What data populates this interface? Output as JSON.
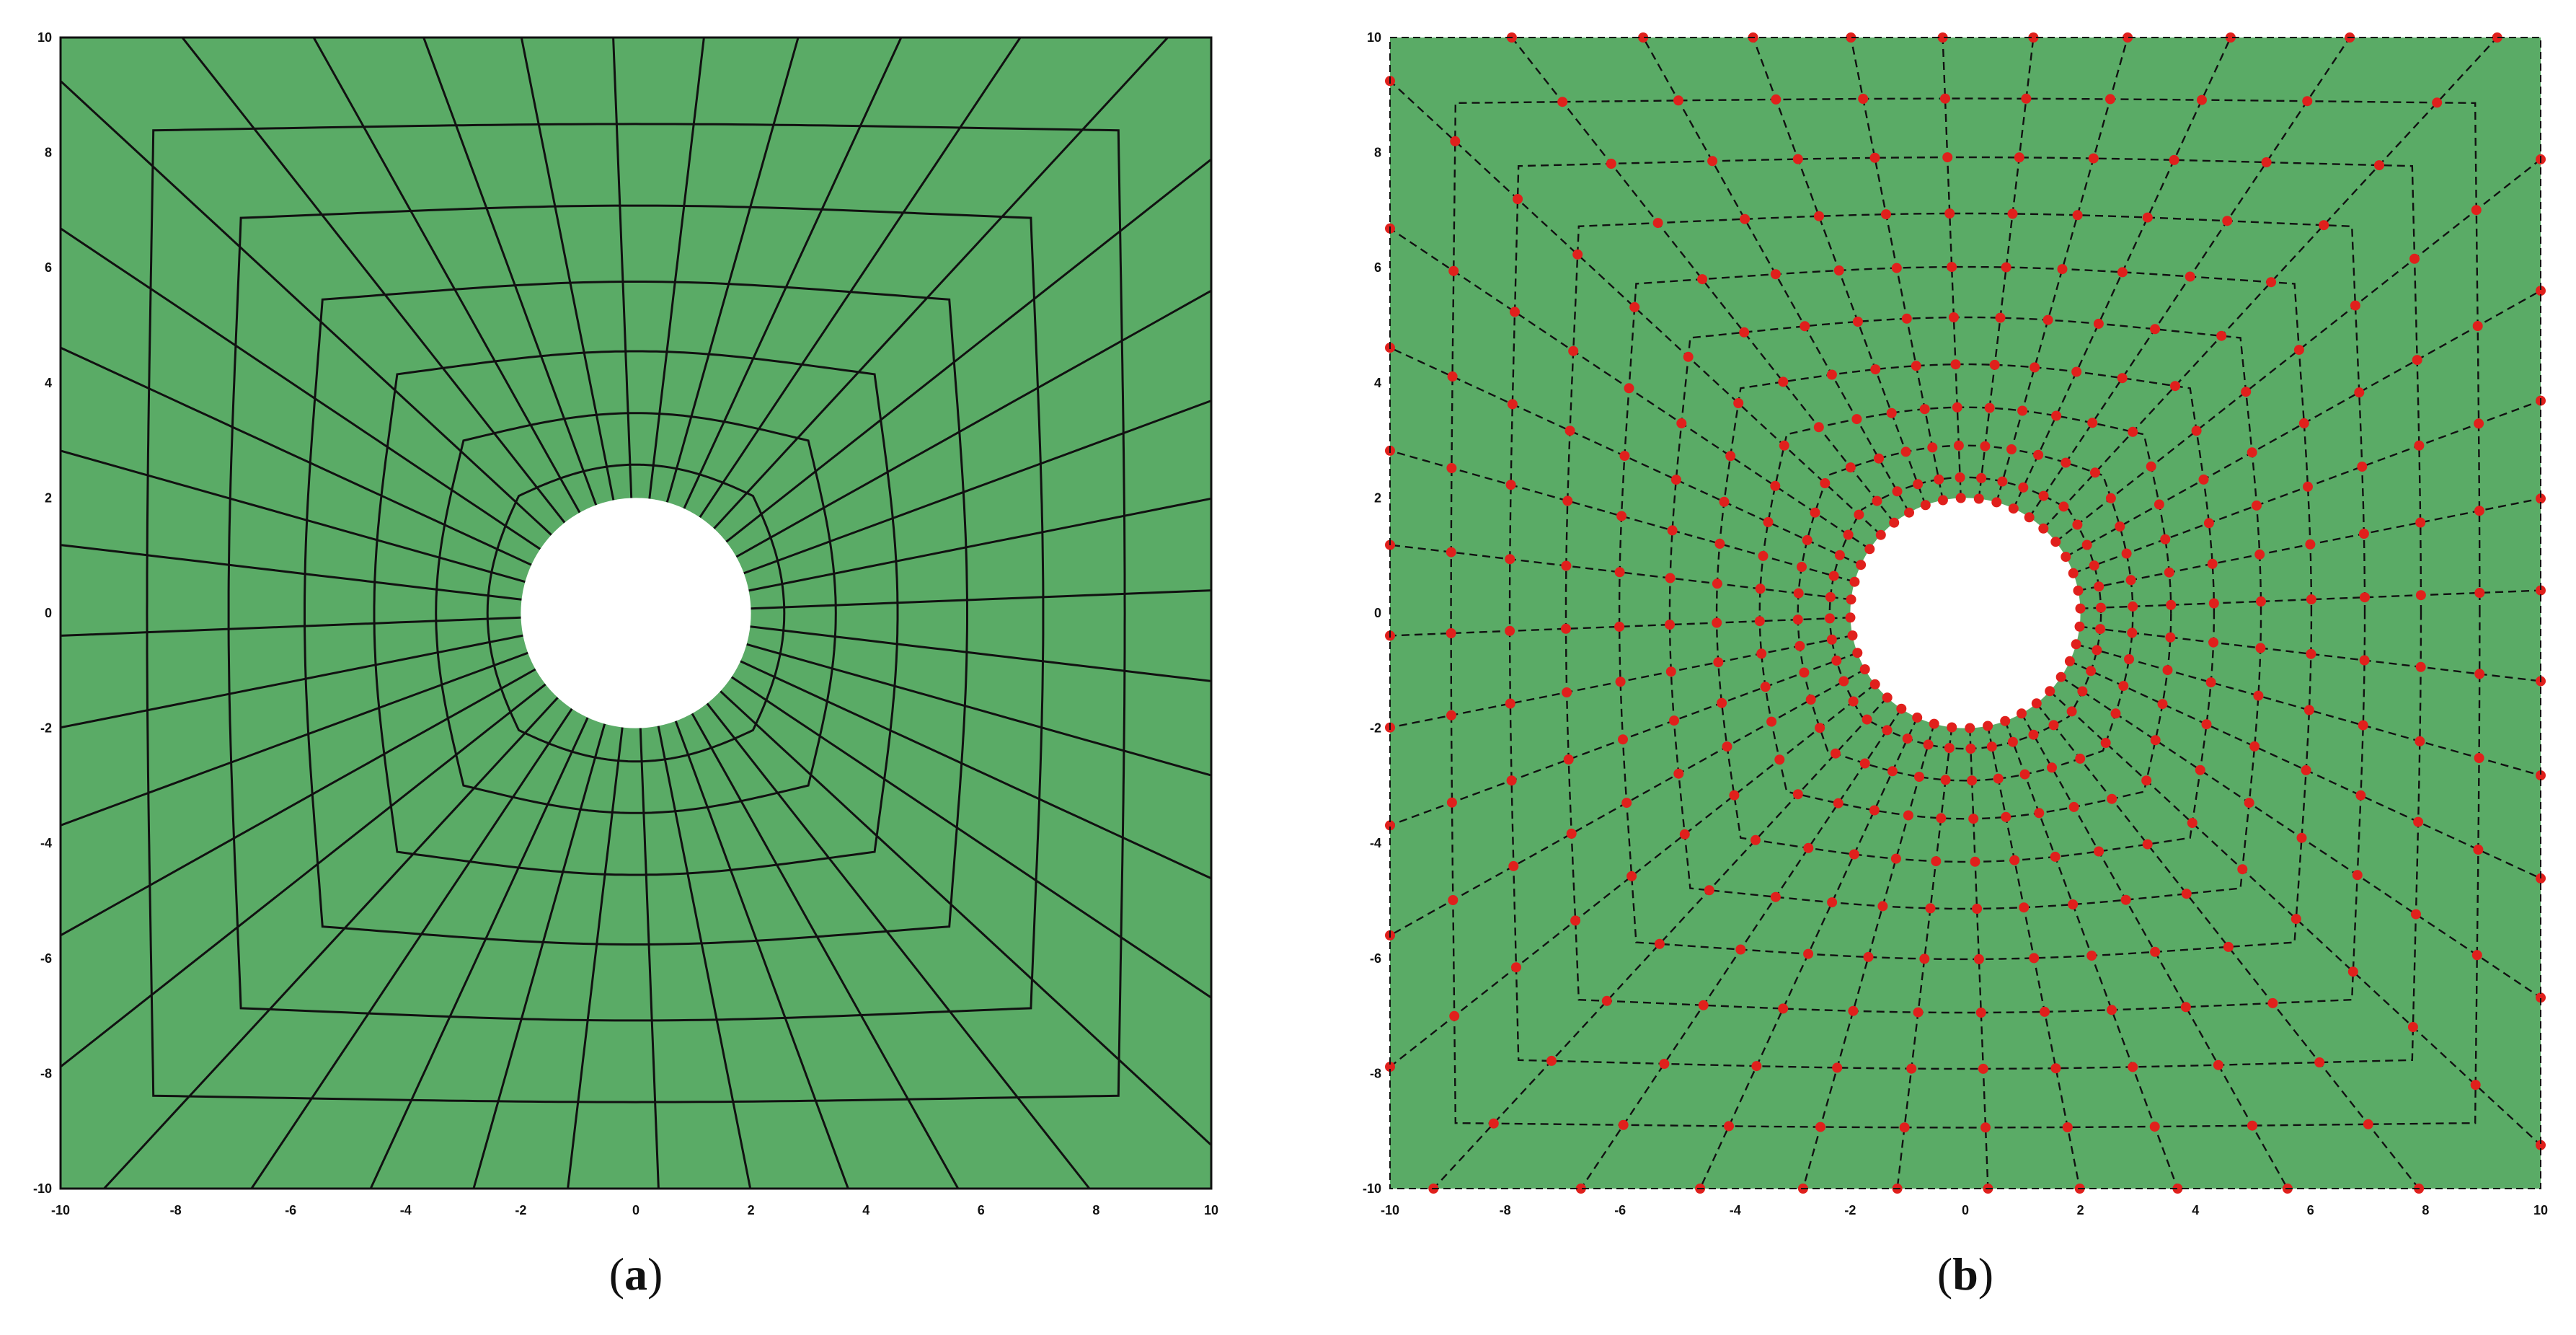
{
  "figure": {
    "colors": {
      "fill": "#5aab66",
      "line": "#111111",
      "node": "#e0201c",
      "hole": "#ffffff"
    },
    "domain": {
      "xlim": [
        -10,
        10
      ],
      "ylim": [
        -10,
        10
      ]
    },
    "hole_radius": 2,
    "panels": [
      {
        "open": "(",
        "letter": "a",
        "close": ")",
        "line_style": "solid",
        "nodes_visible": false,
        "xticks": [
          "-10",
          "-8",
          "-6",
          "-4",
          "-2",
          "0",
          "2",
          "4",
          "6",
          "8",
          "10"
        ],
        "yticks": [
          "10",
          "8",
          "6",
          "4",
          "2",
          "0",
          "-2",
          "-4",
          "-6",
          "-8",
          "-10"
        ]
      },
      {
        "open": "(",
        "letter": "b",
        "close": ")",
        "line_style": "dashed",
        "nodes_visible": true,
        "xticks": [
          "-10",
          "-8",
          "-6",
          "-4",
          "-2",
          "0",
          "2",
          "4",
          "6",
          "8",
          "10"
        ],
        "yticks": [
          "10",
          "8",
          "6",
          "4",
          "2",
          "0",
          "-2",
          "-4",
          "-6",
          "-8",
          "-10"
        ]
      }
    ],
    "mesh": {
      "radial_lines": 40,
      "rings": 6,
      "rings_b": 9
    }
  }
}
